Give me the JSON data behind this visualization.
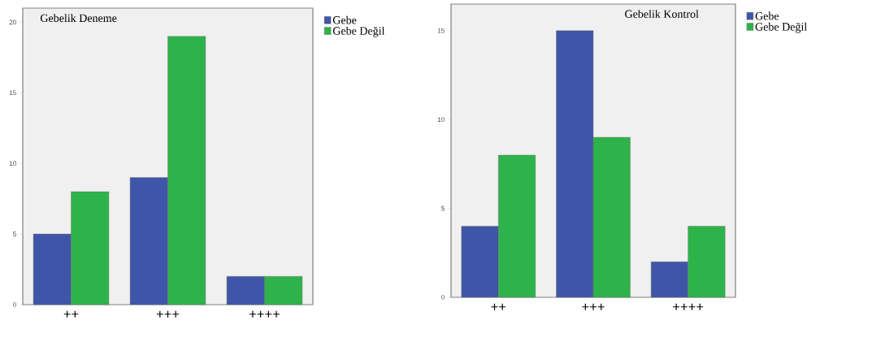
{
  "chart_data": [
    {
      "type": "bar",
      "title": "Gebelik Deneme",
      "categories": [
        "++",
        "+++",
        "++++"
      ],
      "series": [
        {
          "name": "Gebe",
          "color": "#3f56a8",
          "values": [
            5,
            9,
            2
          ]
        },
        {
          "name": "Gebe Değil",
          "color": "#2db34a",
          "values": [
            8,
            19,
            2
          ]
        }
      ],
      "ylim": [
        0,
        21
      ],
      "yticks": [
        0,
        5,
        10,
        15,
        20
      ],
      "legend": "right",
      "grid": false
    },
    {
      "type": "bar",
      "title": "Gebelik Kontrol",
      "categories": [
        "++",
        "+++",
        "++++"
      ],
      "series": [
        {
          "name": "Gebe",
          "color": "#3f56a8",
          "values": [
            4,
            15,
            2
          ]
        },
        {
          "name": "Gebe Değil",
          "color": "#2db34a",
          "values": [
            8,
            9,
            4
          ]
        }
      ],
      "ylim": [
        0,
        16.5
      ],
      "yticks": [
        0,
        5,
        10,
        15
      ],
      "legend": "right",
      "grid": false
    }
  ]
}
